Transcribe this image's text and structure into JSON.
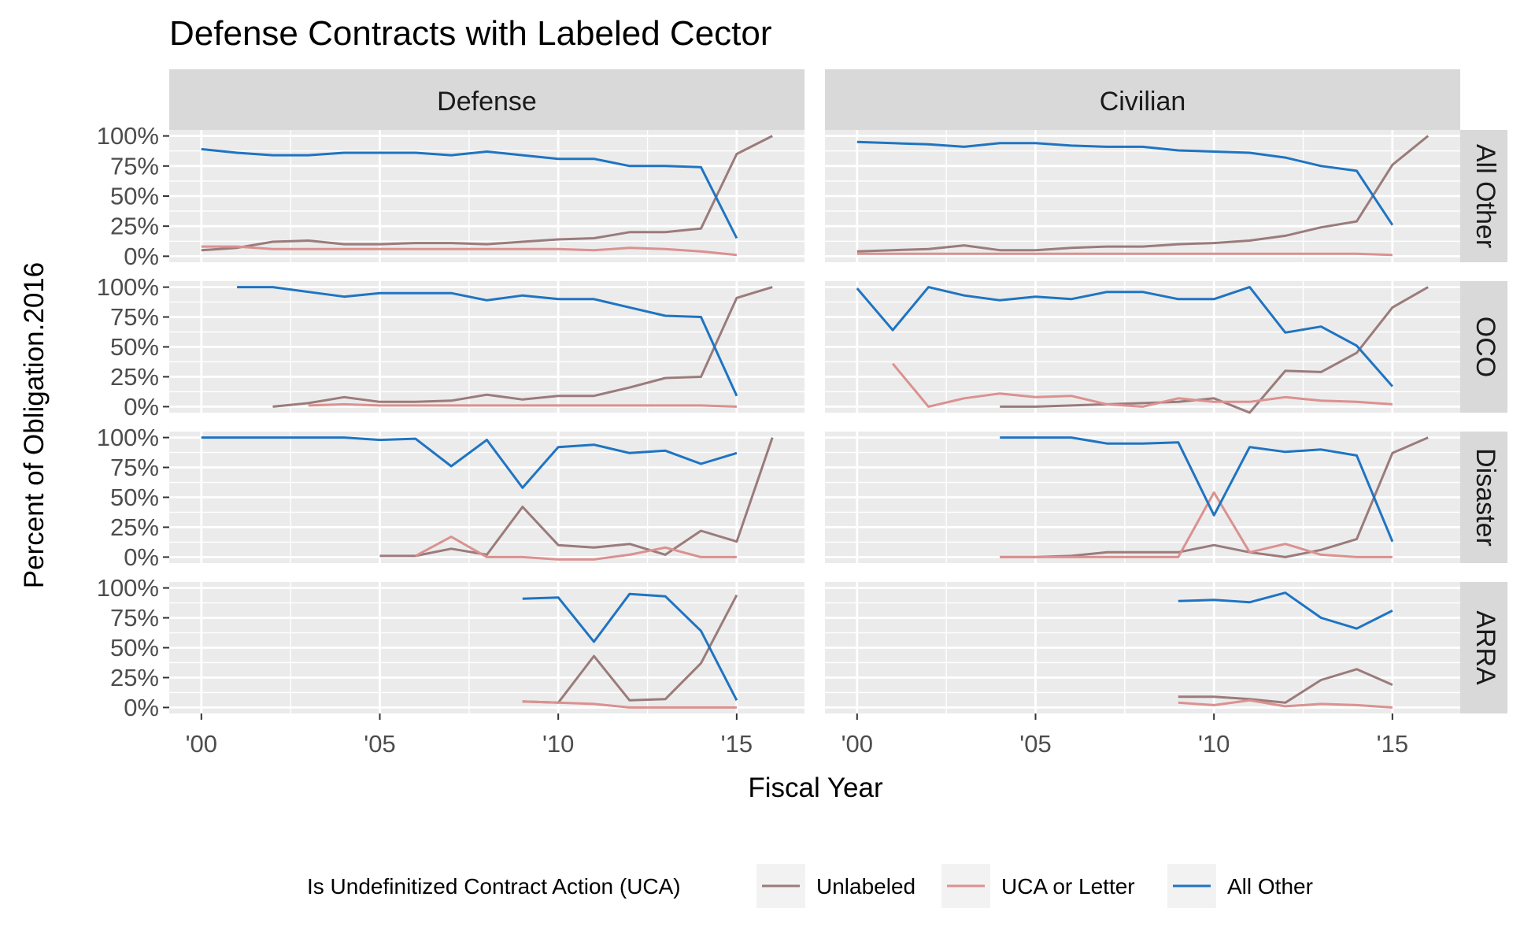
{
  "chart_data": {
    "type": "line",
    "title": "Defense Contracts with Labeled Cector",
    "xlabel": "Fiscal Year",
    "ylabel": "Percent of Obligation.2016",
    "x_ticks": [
      {
        "value": 2000,
        "label": "'00"
      },
      {
        "value": 2005,
        "label": "'05"
      },
      {
        "value": 2010,
        "label": "'10"
      },
      {
        "value": 2015,
        "label": "'15"
      }
    ],
    "y_ticks": [
      {
        "value": 0,
        "label": "0%"
      },
      {
        "value": 0.25,
        "label": "25%"
      },
      {
        "value": 0.5,
        "label": "50%"
      },
      {
        "value": 0.75,
        "label": "75%"
      },
      {
        "value": 1,
        "label": "100%"
      }
    ],
    "xlim": [
      1999.1,
      2016.9
    ],
    "ylim": [
      -0.05,
      1.05
    ],
    "grid": true,
    "columns": [
      "Defense",
      "Civilian"
    ],
    "rows": [
      "All Other",
      "OCO",
      "Disaster",
      "ARRA"
    ],
    "legend": {
      "title": "Is Undefinitized Contract Action (UCA)",
      "position": "bottom",
      "entries": [
        "Unlabeled",
        "UCA or Letter",
        "All Other"
      ]
    },
    "colors": {
      "Unlabeled": "#9B7B7B",
      "UCA or Letter": "#DB9190",
      "All Other": "#1F74C2"
    },
    "panels": [
      {
        "column": "Defense",
        "row": "All Other",
        "series": [
          {
            "name": "Unlabeled",
            "x": [
              2000,
              2001,
              2002,
              2003,
              2004,
              2005,
              2006,
              2007,
              2008,
              2009,
              2010,
              2011,
              2012,
              2013,
              2014,
              2015,
              2016
            ],
            "y": [
              0.05,
              0.07,
              0.12,
              0.13,
              0.1,
              0.1,
              0.11,
              0.11,
              0.1,
              0.12,
              0.14,
              0.15,
              0.2,
              0.2,
              0.23,
              0.85,
              1.0
            ]
          },
          {
            "name": "UCA or Letter",
            "x": [
              2000,
              2001,
              2002,
              2003,
              2004,
              2005,
              2006,
              2007,
              2008,
              2009,
              2010,
              2011,
              2012,
              2013,
              2014,
              2015
            ],
            "y": [
              0.08,
              0.08,
              0.06,
              0.06,
              0.06,
              0.06,
              0.06,
              0.06,
              0.06,
              0.06,
              0.06,
              0.05,
              0.07,
              0.06,
              0.04,
              0.01
            ]
          },
          {
            "name": "All Other",
            "x": [
              2000,
              2001,
              2002,
              2003,
              2004,
              2005,
              2006,
              2007,
              2008,
              2009,
              2010,
              2011,
              2012,
              2013,
              2014,
              2015
            ],
            "y": [
              0.89,
              0.86,
              0.84,
              0.84,
              0.86,
              0.86,
              0.86,
              0.84,
              0.87,
              0.84,
              0.81,
              0.81,
              0.75,
              0.75,
              0.74,
              0.15
            ]
          }
        ]
      },
      {
        "column": "Civilian",
        "row": "All Other",
        "series": [
          {
            "name": "Unlabeled",
            "x": [
              2000,
              2001,
              2002,
              2003,
              2004,
              2005,
              2006,
              2007,
              2008,
              2009,
              2010,
              2011,
              2012,
              2013,
              2014,
              2015,
              2016
            ],
            "y": [
              0.04,
              0.05,
              0.06,
              0.09,
              0.05,
              0.05,
              0.07,
              0.08,
              0.08,
              0.1,
              0.11,
              0.13,
              0.17,
              0.24,
              0.29,
              0.76,
              1.0
            ]
          },
          {
            "name": "UCA or Letter",
            "x": [
              2000,
              2001,
              2002,
              2003,
              2004,
              2005,
              2006,
              2007,
              2008,
              2009,
              2010,
              2011,
              2012,
              2013,
              2014,
              2015
            ],
            "y": [
              0.02,
              0.02,
              0.02,
              0.02,
              0.02,
              0.02,
              0.02,
              0.02,
              0.02,
              0.02,
              0.02,
              0.02,
              0.02,
              0.02,
              0.02,
              0.01
            ]
          },
          {
            "name": "All Other",
            "x": [
              2000,
              2001,
              2002,
              2003,
              2004,
              2005,
              2006,
              2007,
              2008,
              2009,
              2010,
              2011,
              2012,
              2013,
              2014,
              2015
            ],
            "y": [
              0.95,
              0.94,
              0.93,
              0.91,
              0.94,
              0.94,
              0.92,
              0.91,
              0.91,
              0.88,
              0.87,
              0.86,
              0.82,
              0.75,
              0.71,
              0.26
            ]
          }
        ]
      },
      {
        "column": "Defense",
        "row": "OCO",
        "series": [
          {
            "name": "Unlabeled",
            "x": [
              2002,
              2003,
              2004,
              2005,
              2006,
              2007,
              2008,
              2009,
              2010,
              2011,
              2012,
              2013,
              2014,
              2015,
              2016
            ],
            "y": [
              0.0,
              0.03,
              0.08,
              0.04,
              0.04,
              0.05,
              0.1,
              0.06,
              0.09,
              0.09,
              0.16,
              0.24,
              0.25,
              0.91,
              1.0
            ]
          },
          {
            "name": "UCA or Letter",
            "x": [
              2003,
              2004,
              2005,
              2006,
              2007,
              2008,
              2009,
              2010,
              2011,
              2012,
              2013,
              2014,
              2015
            ],
            "y": [
              0.01,
              0.02,
              0.01,
              0.01,
              0.01,
              0.01,
              0.01,
              0.01,
              0.01,
              0.01,
              0.01,
              0.01,
              0.0
            ]
          },
          {
            "name": "All Other",
            "x": [
              2001,
              2002,
              2003,
              2004,
              2005,
              2006,
              2007,
              2008,
              2009,
              2010,
              2011,
              2012,
              2013,
              2014,
              2015
            ],
            "y": [
              1.0,
              1.0,
              0.96,
              0.92,
              0.95,
              0.95,
              0.95,
              0.89,
              0.93,
              0.9,
              0.9,
              0.83,
              0.76,
              0.75,
              0.09
            ]
          }
        ]
      },
      {
        "column": "Civilian",
        "row": "OCO",
        "series": [
          {
            "name": "Unlabeled",
            "x": [
              2004,
              2005,
              2006,
              2007,
              2008,
              2009,
              2010,
              2011,
              2012,
              2013,
              2014,
              2015,
              2016
            ],
            "y": [
              0.0,
              0.0,
              0.01,
              0.02,
              0.03,
              0.04,
              0.07,
              -0.05,
              0.3,
              0.29,
              0.45,
              0.83,
              1.0
            ]
          },
          {
            "name": "UCA or Letter",
            "x": [
              2001,
              2002,
              2003,
              2004,
              2005,
              2006,
              2007,
              2008,
              2009,
              2010,
              2011,
              2012,
              2013,
              2014,
              2015
            ],
            "y": [
              0.36,
              0.0,
              0.07,
              0.11,
              0.08,
              0.09,
              0.02,
              0.0,
              0.07,
              0.04,
              0.04,
              0.08,
              0.05,
              0.04,
              0.02
            ]
          },
          {
            "name": "All Other",
            "x": [
              2000,
              2001,
              2002,
              2003,
              2004,
              2005,
              2006,
              2007,
              2008,
              2009,
              2010,
              2011,
              2012,
              2013,
              2014,
              2015
            ],
            "y": [
              0.99,
              0.64,
              1.0,
              0.93,
              0.89,
              0.92,
              0.9,
              0.96,
              0.96,
              0.9,
              0.9,
              1.0,
              0.62,
              0.67,
              0.51,
              0.17
            ]
          }
        ]
      },
      {
        "column": "Defense",
        "row": "Disaster",
        "series": [
          {
            "name": "Unlabeled",
            "x": [
              2005,
              2006,
              2007,
              2008,
              2009,
              2010,
              2011,
              2012,
              2013,
              2014,
              2015,
              2016
            ],
            "y": [
              0.01,
              0.01,
              0.07,
              0.02,
              0.42,
              0.1,
              0.08,
              0.11,
              0.02,
              0.22,
              0.13,
              1.0
            ]
          },
          {
            "name": "UCA or Letter",
            "x": [
              2006,
              2007,
              2008,
              2009,
              2010,
              2011,
              2012,
              2013,
              2014,
              2015
            ],
            "y": [
              0.01,
              0.17,
              0.0,
              0.0,
              -0.02,
              -0.02,
              0.02,
              0.08,
              0.0,
              0.0
            ]
          },
          {
            "name": "All Other",
            "x": [
              2000,
              2001,
              2002,
              2003,
              2004,
              2005,
              2006,
              2007,
              2008,
              2009,
              2010,
              2011,
              2012,
              2013,
              2014,
              2015
            ],
            "y": [
              1.0,
              1.0,
              1.0,
              1.0,
              1.0,
              0.98,
              0.99,
              0.76,
              0.98,
              0.58,
              0.92,
              0.94,
              0.87,
              0.89,
              0.78,
              0.87
            ]
          }
        ]
      },
      {
        "column": "Civilian",
        "row": "Disaster",
        "series": [
          {
            "name": "Unlabeled",
            "x": [
              2004,
              2005,
              2006,
              2007,
              2008,
              2009,
              2010,
              2011,
              2012,
              2013,
              2014,
              2015,
              2016
            ],
            "y": [
              0.0,
              0.0,
              0.01,
              0.04,
              0.04,
              0.04,
              0.1,
              0.04,
              0.0,
              0.06,
              0.15,
              0.87,
              1.0
            ]
          },
          {
            "name": "UCA or Letter",
            "x": [
              2004,
              2005,
              2006,
              2007,
              2008,
              2009,
              2010,
              2011,
              2012,
              2013,
              2014,
              2015
            ],
            "y": [
              0.0,
              0.0,
              0.0,
              0.0,
              0.0,
              0.0,
              0.54,
              0.04,
              0.11,
              0.02,
              0.0,
              0.0
            ]
          },
          {
            "name": "All Other",
            "x": [
              2004,
              2005,
              2006,
              2007,
              2008,
              2009,
              2010,
              2011,
              2012,
              2013,
              2014,
              2015
            ],
            "y": [
              1.0,
              1.0,
              1.0,
              0.95,
              0.95,
              0.96,
              0.35,
              0.92,
              0.88,
              0.9,
              0.85,
              0.13
            ]
          }
        ]
      },
      {
        "column": "Defense",
        "row": "ARRA",
        "series": [
          {
            "name": "Unlabeled",
            "x": [
              2009,
              2010,
              2011,
              2012,
              2013,
              2014,
              2015
            ],
            "y": [
              0.05,
              0.04,
              0.43,
              0.06,
              0.07,
              0.37,
              0.94
            ]
          },
          {
            "name": "UCA or Letter",
            "x": [
              2009,
              2010,
              2011,
              2012,
              2013,
              2014,
              2015
            ],
            "y": [
              0.05,
              0.04,
              0.03,
              0.0,
              0.0,
              0.0,
              0.0
            ]
          },
          {
            "name": "All Other",
            "x": [
              2009,
              2010,
              2011,
              2012,
              2013,
              2014,
              2015
            ],
            "y": [
              0.91,
              0.92,
              0.55,
              0.95,
              0.93,
              0.64,
              0.06
            ]
          }
        ]
      },
      {
        "column": "Civilian",
        "row": "ARRA",
        "series": [
          {
            "name": "Unlabeled",
            "x": [
              2009,
              2010,
              2011,
              2012,
              2013,
              2014,
              2015
            ],
            "y": [
              0.09,
              0.09,
              0.07,
              0.04,
              0.23,
              0.32,
              0.19
            ]
          },
          {
            "name": "UCA or Letter",
            "x": [
              2009,
              2010,
              2011,
              2012,
              2013,
              2014,
              2015
            ],
            "y": [
              0.04,
              0.02,
              0.06,
              0.01,
              0.03,
              0.02,
              0.0
            ]
          },
          {
            "name": "All Other",
            "x": [
              2009,
              2010,
              2011,
              2012,
              2013,
              2014,
              2015
            ],
            "y": [
              0.89,
              0.9,
              0.88,
              0.96,
              0.75,
              0.66,
              0.81
            ]
          }
        ]
      }
    ]
  }
}
